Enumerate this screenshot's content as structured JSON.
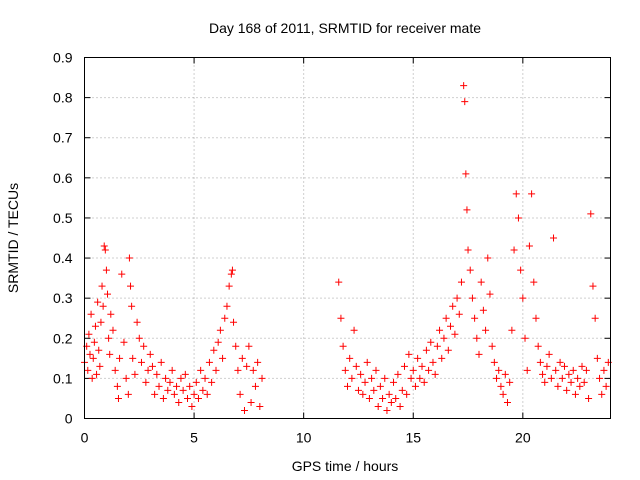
{
  "chart_data": {
    "type": "scatter",
    "title": "Day 168 of 2011, SRMTID for receiver mate",
    "xlabel": "GPS time / hours",
    "ylabel": "SRMTID / TECUs",
    "xlim": [
      0,
      24
    ],
    "ylim": [
      0,
      0.9
    ],
    "xticks": [
      0,
      5,
      10,
      15,
      20
    ],
    "xtick_labels": [
      "0",
      "5",
      "10",
      "15",
      "20"
    ],
    "yticks": [
      0,
      0.1,
      0.2,
      0.3,
      0.4,
      0.5,
      0.6,
      0.7,
      0.8,
      0.9
    ],
    "ytick_labels": [
      "0",
      "0.1",
      "0.2",
      "0.3",
      "0.4",
      "0.5",
      "0.6",
      "0.7",
      "0.8",
      "0.9"
    ],
    "grid": true,
    "marker": "+",
    "color": "#ff0000",
    "series": [
      {
        "name": "SRMTID",
        "points": [
          [
            0.0,
            0.14
          ],
          [
            0.1,
            0.18
          ],
          [
            0.15,
            0.12
          ],
          [
            0.2,
            0.21
          ],
          [
            0.25,
            0.16
          ],
          [
            0.3,
            0.26
          ],
          [
            0.35,
            0.1
          ],
          [
            0.4,
            0.15
          ],
          [
            0.45,
            0.19
          ],
          [
            0.5,
            0.23
          ],
          [
            0.55,
            0.11
          ],
          [
            0.6,
            0.29
          ],
          [
            0.65,
            0.17
          ],
          [
            0.7,
            0.13
          ],
          [
            0.75,
            0.24
          ],
          [
            0.8,
            0.33
          ],
          [
            0.85,
            0.28
          ],
          [
            0.9,
            0.43
          ],
          [
            0.95,
            0.42
          ],
          [
            1.0,
            0.37
          ],
          [
            1.05,
            0.31
          ],
          [
            1.1,
            0.2
          ],
          [
            1.15,
            0.16
          ],
          [
            1.2,
            0.26
          ],
          [
            1.3,
            0.22
          ],
          [
            1.4,
            0.12
          ],
          [
            1.5,
            0.08
          ],
          [
            1.55,
            0.05
          ],
          [
            1.6,
            0.15
          ],
          [
            1.7,
            0.36
          ],
          [
            1.8,
            0.19
          ],
          [
            1.9,
            0.1
          ],
          [
            2.0,
            0.06
          ],
          [
            2.05,
            0.4
          ],
          [
            2.1,
            0.33
          ],
          [
            2.15,
            0.28
          ],
          [
            2.2,
            0.15
          ],
          [
            2.3,
            0.11
          ],
          [
            2.4,
            0.24
          ],
          [
            2.5,
            0.2
          ],
          [
            2.6,
            0.14
          ],
          [
            2.7,
            0.18
          ],
          [
            2.8,
            0.09
          ],
          [
            2.9,
            0.12
          ],
          [
            3.0,
            0.16
          ],
          [
            3.1,
            0.13
          ],
          [
            3.2,
            0.06
          ],
          [
            3.3,
            0.11
          ],
          [
            3.4,
            0.08
          ],
          [
            3.5,
            0.14
          ],
          [
            3.6,
            0.05
          ],
          [
            3.7,
            0.1
          ],
          [
            3.8,
            0.07
          ],
          [
            3.9,
            0.09
          ],
          [
            4.0,
            0.12
          ],
          [
            4.1,
            0.06
          ],
          [
            4.2,
            0.08
          ],
          [
            4.3,
            0.04
          ],
          [
            4.4,
            0.1
          ],
          [
            4.5,
            0.07
          ],
          [
            4.6,
            0.11
          ],
          [
            4.7,
            0.05
          ],
          [
            4.8,
            0.08
          ],
          [
            4.9,
            0.03
          ],
          [
            5.0,
            0.06
          ],
          [
            5.1,
            0.09
          ],
          [
            5.2,
            0.05
          ],
          [
            5.3,
            0.12
          ],
          [
            5.4,
            0.07
          ],
          [
            5.5,
            0.1
          ],
          [
            5.6,
            0.06
          ],
          [
            5.7,
            0.14
          ],
          [
            5.8,
            0.09
          ],
          [
            5.9,
            0.17
          ],
          [
            6.0,
            0.12
          ],
          [
            6.1,
            0.19
          ],
          [
            6.2,
            0.22
          ],
          [
            6.3,
            0.15
          ],
          [
            6.4,
            0.25
          ],
          [
            6.5,
            0.28
          ],
          [
            6.6,
            0.33
          ],
          [
            6.7,
            0.36
          ],
          [
            6.75,
            0.37
          ],
          [
            6.8,
            0.24
          ],
          [
            6.9,
            0.18
          ],
          [
            7.0,
            0.12
          ],
          [
            7.1,
            0.06
          ],
          [
            7.2,
            0.15
          ],
          [
            7.3,
            0.02
          ],
          [
            7.4,
            0.13
          ],
          [
            7.5,
            0.18
          ],
          [
            7.6,
            0.04
          ],
          [
            7.7,
            0.12
          ],
          [
            7.8,
            0.08
          ],
          [
            7.9,
            0.14
          ],
          [
            8.0,
            0.03
          ],
          [
            8.1,
            0.1
          ],
          [
            11.6,
            0.34
          ],
          [
            11.7,
            0.25
          ],
          [
            11.8,
            0.18
          ],
          [
            11.9,
            0.12
          ],
          [
            12.0,
            0.08
          ],
          [
            12.1,
            0.15
          ],
          [
            12.2,
            0.1
          ],
          [
            12.3,
            0.22
          ],
          [
            12.4,
            0.13
          ],
          [
            12.5,
            0.07
          ],
          [
            12.6,
            0.11
          ],
          [
            12.7,
            0.06
          ],
          [
            12.8,
            0.09
          ],
          [
            12.9,
            0.14
          ],
          [
            13.0,
            0.05
          ],
          [
            13.1,
            0.1
          ],
          [
            13.2,
            0.07
          ],
          [
            13.3,
            0.12
          ],
          [
            13.4,
            0.03
          ],
          [
            13.5,
            0.08
          ],
          [
            13.6,
            0.05
          ],
          [
            13.7,
            0.1
          ],
          [
            13.8,
            0.02
          ],
          [
            13.9,
            0.06
          ],
          [
            14.0,
            0.04
          ],
          [
            14.1,
            0.09
          ],
          [
            14.2,
            0.05
          ],
          [
            14.3,
            0.11
          ],
          [
            14.4,
            0.03
          ],
          [
            14.5,
            0.07
          ],
          [
            14.6,
            0.13
          ],
          [
            14.7,
            0.06
          ],
          [
            14.8,
            0.16
          ],
          [
            14.9,
            0.1
          ],
          [
            15.0,
            0.12
          ],
          [
            15.1,
            0.08
          ],
          [
            15.2,
            0.15
          ],
          [
            15.3,
            0.1
          ],
          [
            15.4,
            0.13
          ],
          [
            15.5,
            0.09
          ],
          [
            15.6,
            0.17
          ],
          [
            15.7,
            0.12
          ],
          [
            15.8,
            0.19
          ],
          [
            15.9,
            0.14
          ],
          [
            16.0,
            0.11
          ],
          [
            16.1,
            0.18
          ],
          [
            16.2,
            0.22
          ],
          [
            16.3,
            0.15
          ],
          [
            16.4,
            0.2
          ],
          [
            16.5,
            0.25
          ],
          [
            16.6,
            0.17
          ],
          [
            16.7,
            0.23
          ],
          [
            16.8,
            0.28
          ],
          [
            16.9,
            0.21
          ],
          [
            17.0,
            0.3
          ],
          [
            17.1,
            0.26
          ],
          [
            17.2,
            0.34
          ],
          [
            17.3,
            0.83
          ],
          [
            17.35,
            0.79
          ],
          [
            17.4,
            0.61
          ],
          [
            17.45,
            0.52
          ],
          [
            17.5,
            0.42
          ],
          [
            17.6,
            0.37
          ],
          [
            17.7,
            0.3
          ],
          [
            17.8,
            0.25
          ],
          [
            17.9,
            0.2
          ],
          [
            18.0,
            0.16
          ],
          [
            18.1,
            0.34
          ],
          [
            18.2,
            0.27
          ],
          [
            18.3,
            0.22
          ],
          [
            18.4,
            0.4
          ],
          [
            18.5,
            0.31
          ],
          [
            18.6,
            0.18
          ],
          [
            18.7,
            0.14
          ],
          [
            18.8,
            0.1
          ],
          [
            18.9,
            0.12
          ],
          [
            19.0,
            0.08
          ],
          [
            19.1,
            0.06
          ],
          [
            19.2,
            0.11
          ],
          [
            19.3,
            0.04
          ],
          [
            19.4,
            0.09
          ],
          [
            19.5,
            0.22
          ],
          [
            19.6,
            0.42
          ],
          [
            19.7,
            0.56
          ],
          [
            19.8,
            0.5
          ],
          [
            19.9,
            0.37
          ],
          [
            20.0,
            0.3
          ],
          [
            20.1,
            0.2
          ],
          [
            20.2,
            0.12
          ],
          [
            20.3,
            0.43
          ],
          [
            20.4,
            0.56
          ],
          [
            20.5,
            0.34
          ],
          [
            20.6,
            0.25
          ],
          [
            20.7,
            0.18
          ],
          [
            20.8,
            0.14
          ],
          [
            20.9,
            0.11
          ],
          [
            21.0,
            0.09
          ],
          [
            21.1,
            0.13
          ],
          [
            21.2,
            0.16
          ],
          [
            21.3,
            0.1
          ],
          [
            21.4,
            0.45
          ],
          [
            21.5,
            0.12
          ],
          [
            21.6,
            0.08
          ],
          [
            21.7,
            0.14
          ],
          [
            21.8,
            0.1
          ],
          [
            21.9,
            0.13
          ],
          [
            22.0,
            0.07
          ],
          [
            22.1,
            0.11
          ],
          [
            22.2,
            0.09
          ],
          [
            22.3,
            0.12
          ],
          [
            22.4,
            0.06
          ],
          [
            22.5,
            0.1
          ],
          [
            22.6,
            0.08
          ],
          [
            22.7,
            0.13
          ],
          [
            22.8,
            0.09
          ],
          [
            22.9,
            0.12
          ],
          [
            23.0,
            0.05
          ],
          [
            23.1,
            0.51
          ],
          [
            23.2,
            0.33
          ],
          [
            23.3,
            0.25
          ],
          [
            23.4,
            0.15
          ],
          [
            23.5,
            0.1
          ],
          [
            23.6,
            0.06
          ],
          [
            23.7,
            0.12
          ],
          [
            23.8,
            0.08
          ],
          [
            23.9,
            0.14
          ]
        ]
      }
    ]
  }
}
